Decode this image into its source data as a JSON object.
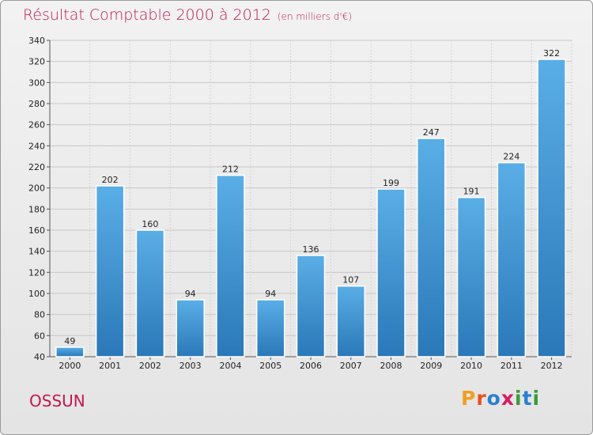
{
  "chart_data": {
    "type": "bar",
    "title": "Résultat Comptable 2000 à 2012",
    "subtitle": "(en milliers d'€)",
    "categories": [
      "2000",
      "2001",
      "2002",
      "2003",
      "2004",
      "2005",
      "2006",
      "2007",
      "2008",
      "2009",
      "2010",
      "2011",
      "2012"
    ],
    "values": [
      49,
      202,
      160,
      94,
      212,
      94,
      136,
      107,
      199,
      247,
      191,
      224,
      322
    ],
    "ylim": [
      40,
      340
    ],
    "yticks": [
      40,
      60,
      80,
      100,
      120,
      140,
      160,
      180,
      200,
      220,
      240,
      260,
      280,
      300,
      320,
      340
    ],
    "grid": true,
    "xlabel": "",
    "ylabel": ""
  },
  "location": "OSSUN",
  "logo": {
    "text": "Proxiti",
    "letters": [
      "P",
      "r",
      "o",
      "x",
      "i",
      "t",
      "i"
    ]
  },
  "colors": {
    "title": "#c0184f",
    "bar_top": "#5aaee6",
    "bar_bottom": "#2a78b8",
    "logo": [
      "#f0a020",
      "#e8501a",
      "#2b7fd0",
      "#d81b60",
      "#3a9a3a",
      "#2b7fd0",
      "#3a9a3a"
    ]
  }
}
